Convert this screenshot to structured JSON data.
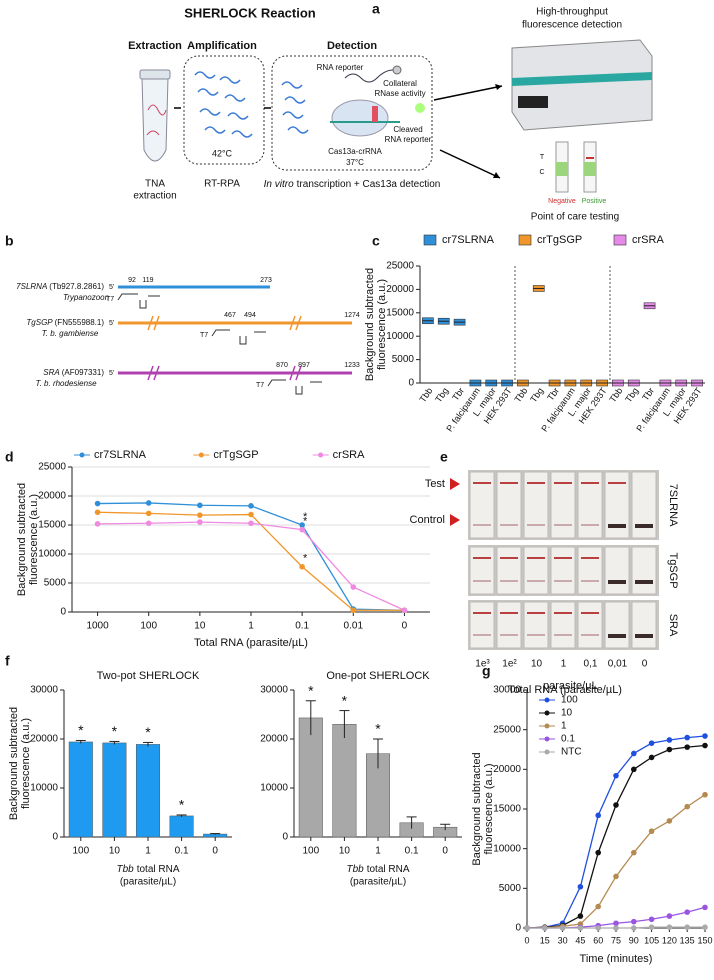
{
  "panel_labels": [
    "a",
    "b",
    "c",
    "d",
    "e",
    "f",
    "g"
  ],
  "panel_a": {
    "title": "SHERLOCK Reaction",
    "steps": [
      "Extraction",
      "Amplification",
      "Detection"
    ],
    "extraction_label": [
      "TNA",
      "extraction"
    ],
    "amplification_temp": "42°C",
    "amplification_label": "RT-RPA",
    "rna_reporter": "RNA reporter",
    "collateral": [
      "Collateral",
      "RNase activity"
    ],
    "cleaved": [
      "Cleaved",
      "RNA reporter"
    ],
    "cas": "Cas13a-crRNA",
    "detection_temp": "37°C",
    "detection_label_italic": "In vitro",
    "detection_label": "transcription + Cas13a detection",
    "high_throughput": [
      "High-throughput",
      "fluorescence detection"
    ],
    "strip_t": "T",
    "strip_c": "C",
    "negative": "Negative",
    "positive": "Positive",
    "poc": "Point of care testing"
  },
  "panel_b": {
    "t7": "T7",
    "five_prime": "5'",
    "genes": [
      {
        "name": "7SLRNA",
        "id": "(Tb927.8.2861)",
        "species": "Trypanozoon",
        "positions": [
          "92",
          "119",
          "273"
        ]
      },
      {
        "name": "TgSGP",
        "id": "(FN555988.1)",
        "species": "T. b. gambiense",
        "positions": [
          "467",
          "494",
          "1274"
        ]
      },
      {
        "name": "SRA",
        "id": "(AF097331)",
        "species": "T. b. rhodesiense",
        "positions": [
          "870",
          "897",
          "1233"
        ]
      }
    ]
  },
  "panel_e": {
    "rows": [
      "7SLRNA",
      "TgSGP",
      "SRA"
    ],
    "test": "Test",
    "control": "Control",
    "lanes": [
      "1e³",
      "1e²",
      "10",
      "1",
      "0,1",
      "0,01",
      "0"
    ],
    "xlabel": "Total RNA (parasite/µL)"
  },
  "chart_data": [
    {
      "type": "box",
      "categories": [
        "Tbb",
        "Tbg",
        "Tbr",
        "P. falciparum",
        "L. major",
        "HEK 293T"
      ],
      "series": [
        {
          "name": "cr7SLRNA",
          "color": "#2f8fd8",
          "values": [
            13300,
            13200,
            13000,
            0,
            0,
            0
          ]
        },
        {
          "name": "crTgSGP",
          "color": "#f0962a",
          "values": [
            0,
            20200,
            0,
            0,
            0,
            0
          ]
        },
        {
          "name": "crSRA",
          "color": "#e58ae8",
          "values": [
            0,
            0,
            16500,
            0,
            0,
            0
          ]
        }
      ],
      "ylabel": [
        "Background subtracted",
        "fluorescence (a.u.)"
      ],
      "ylim": [
        0,
        25000
      ],
      "yticks": [
        0,
        5000,
        10000,
        15000,
        20000,
        25000
      ],
      "legend": "top",
      "grid": false
    },
    {
      "type": "line",
      "categories": [
        "1000",
        "100",
        "10",
        "1",
        "0.1",
        "0.01",
        "0"
      ],
      "series": [
        {
          "name": "cr7SLRNA",
          "color": "#2f8fd8",
          "values": [
            18700,
            18800,
            18400,
            18300,
            15000,
            500,
            300
          ],
          "significant": [
            false,
            false,
            false,
            false,
            true,
            false,
            false
          ]
        },
        {
          "name": "crTgSGP",
          "color": "#f0962a",
          "values": [
            17200,
            17000,
            16700,
            16800,
            7800,
            300,
            300
          ],
          "significant": [
            false,
            false,
            false,
            false,
            true,
            false,
            false
          ]
        },
        {
          "name": "crSRA",
          "color": "#f08ae0",
          "values": [
            15200,
            15300,
            15500,
            15300,
            14200,
            4300,
            300
          ],
          "significant": [
            false,
            false,
            false,
            false,
            true,
            false,
            false
          ]
        }
      ],
      "sig_label": "*",
      "xlabel": "Total RNA (parasite/µL)",
      "ylabel": [
        "Background subtracted",
        "fluorescence (a.u.)"
      ],
      "ylim": [
        0,
        25000
      ],
      "yticks": [
        0,
        5000,
        10000,
        15000,
        20000,
        25000
      ],
      "legend": "top",
      "grid": true
    },
    {
      "type": "bar",
      "title": "Two-pot SHERLOCK",
      "categories": [
        "100",
        "10",
        "1",
        "0.1",
        "0"
      ],
      "values": [
        19400,
        19200,
        18900,
        4300,
        600
      ],
      "errors": [
        300,
        300,
        400,
        200,
        100
      ],
      "significant": [
        true,
        true,
        true,
        true,
        false
      ],
      "sig_label": "*",
      "color": "#1e9bf0",
      "ylabel": [
        "Background subtracted",
        "fluorescence (a.u.)"
      ],
      "xlabel_italic": "Tbb",
      "xlabel": [
        "total RNA",
        "(parasite/µL)"
      ],
      "ylim": [
        0,
        30000
      ],
      "yticks": [
        0,
        10000,
        20000,
        30000
      ],
      "grid": false
    },
    {
      "type": "bar",
      "title": "One-pot SHERLOCK",
      "categories": [
        "100",
        "10",
        "1",
        "0.1",
        "0"
      ],
      "values": [
        24300,
        23000,
        17000,
        2900,
        2000
      ],
      "errors": [
        3500,
        2800,
        3000,
        1200,
        600
      ],
      "significant": [
        true,
        true,
        true,
        false,
        false
      ],
      "sig_label": "*",
      "color": "#a8a8a8",
      "xlabel_italic": "Tbb",
      "xlabel": [
        "total RNA",
        "(parasite/µL)"
      ],
      "ylim": [
        0,
        30000
      ],
      "yticks": [
        0,
        10000,
        20000,
        30000
      ],
      "grid": false
    },
    {
      "type": "line",
      "x": [
        0,
        15,
        30,
        45,
        60,
        75,
        90,
        105,
        120,
        135,
        150
      ],
      "series": [
        {
          "name": "100",
          "color": "#1f4fe0",
          "values": [
            0,
            100,
            600,
            5200,
            14200,
            19200,
            22000,
            23300,
            23700,
            24000,
            24200
          ]
        },
        {
          "name": "10",
          "color": "#111111",
          "values": [
            0,
            100,
            300,
            1500,
            9500,
            15500,
            20000,
            21500,
            22500,
            22800,
            23000
          ]
        },
        {
          "name": "1",
          "color": "#b58a50",
          "values": [
            0,
            50,
            200,
            500,
            2700,
            6500,
            9500,
            12200,
            13500,
            15300,
            16800
          ]
        },
        {
          "name": "0.1",
          "color": "#9a55e0",
          "values": [
            0,
            0,
            0,
            100,
            300,
            600,
            800,
            1100,
            1500,
            2000,
            2600
          ]
        },
        {
          "name": "NTC",
          "color": "#aaaaaa",
          "values": [
            0,
            0,
            0,
            0,
            0,
            0,
            0,
            100,
            100,
            100,
            100
          ]
        }
      ],
      "legend_title": "parasite/µL",
      "xlabel": "Time (minutes)",
      "ylabel": [
        "Background subtracted",
        "fluorescence (a.u.)"
      ],
      "xlim": [
        0,
        150
      ],
      "xticks": [
        0,
        15,
        30,
        45,
        60,
        75,
        90,
        105,
        120,
        135,
        150
      ],
      "ylim": [
        0,
        30000
      ],
      "yticks": [
        0,
        5000,
        10000,
        15000,
        20000,
        25000,
        30000
      ],
      "legend": "top-left",
      "grid": false
    }
  ]
}
